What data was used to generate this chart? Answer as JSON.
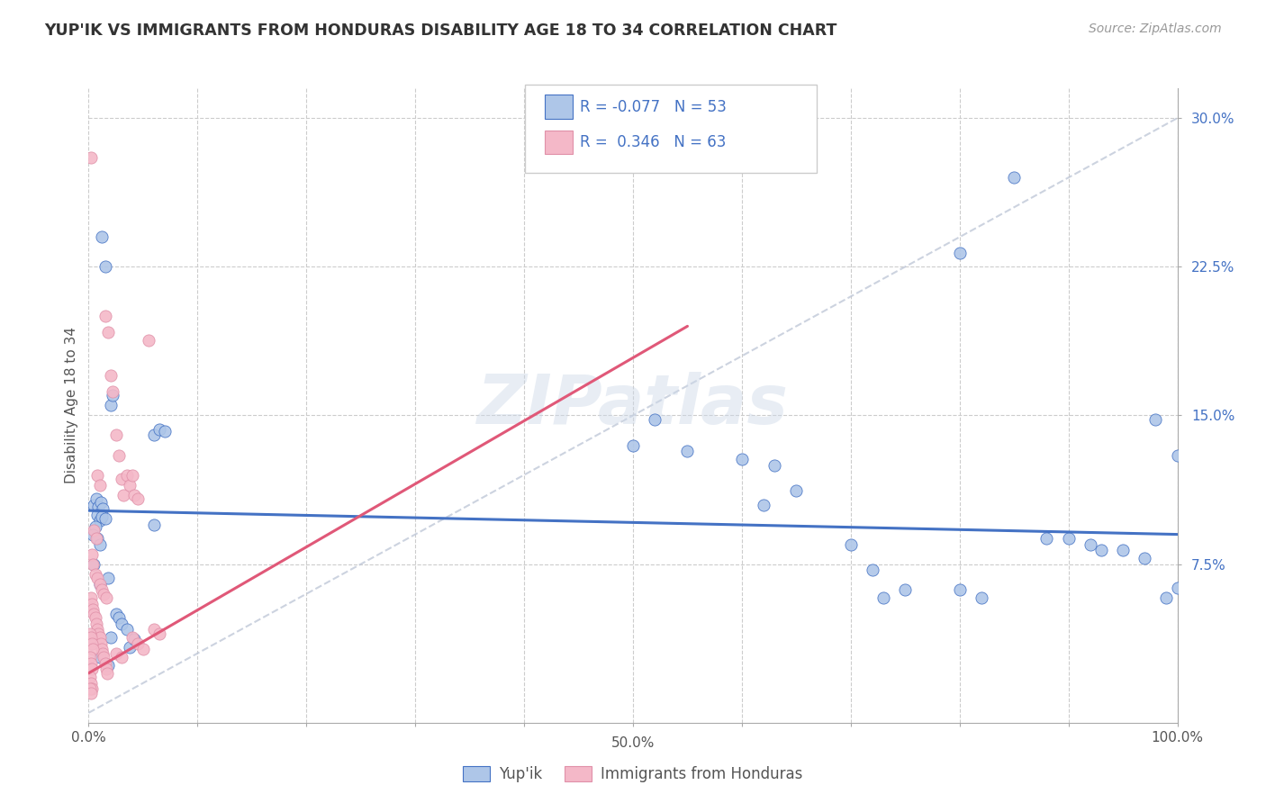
{
  "title": "YUP'IK VS IMMIGRANTS FROM HONDURAS DISABILITY AGE 18 TO 34 CORRELATION CHART",
  "source": "Source: ZipAtlas.com",
  "ylabel": "Disability Age 18 to 34",
  "legend_label1": "Yup'ik",
  "legend_label2": "Immigrants from Honduras",
  "r1": -0.077,
  "n1": 53,
  "r2": 0.346,
  "n2": 63,
  "color1": "#aec6e8",
  "color2": "#f4b8c8",
  "line_color1": "#4472c4",
  "line_color2": "#e05878",
  "xmin": 0.0,
  "xmax": 1.0,
  "ymin": -0.005,
  "ymax": 0.315,
  "blue_line_x": [
    0.0,
    1.0
  ],
  "blue_line_y": [
    0.102,
    0.09
  ],
  "pink_line_x": [
    0.0,
    0.55
  ],
  "pink_line_y": [
    0.02,
    0.195
  ],
  "diag_line_x": [
    0.0,
    1.0
  ],
  "diag_line_y": [
    0.0,
    0.3
  ],
  "blue_points": [
    [
      0.005,
      0.105
    ],
    [
      0.007,
      0.108
    ],
    [
      0.009,
      0.104
    ],
    [
      0.011,
      0.106
    ],
    [
      0.013,
      0.103
    ],
    [
      0.008,
      0.1
    ],
    [
      0.01,
      0.097
    ],
    [
      0.006,
      0.094
    ],
    [
      0.012,
      0.099
    ],
    [
      0.015,
      0.098
    ],
    [
      0.004,
      0.09
    ],
    [
      0.008,
      0.088
    ],
    [
      0.01,
      0.085
    ],
    [
      0.005,
      0.075
    ],
    [
      0.02,
      0.155
    ],
    [
      0.022,
      0.16
    ],
    [
      0.01,
      0.065
    ],
    [
      0.018,
      0.068
    ],
    [
      0.025,
      0.05
    ],
    [
      0.028,
      0.048
    ],
    [
      0.03,
      0.045
    ],
    [
      0.035,
      0.042
    ],
    [
      0.01,
      0.028
    ],
    [
      0.018,
      0.024
    ],
    [
      0.02,
      0.038
    ],
    [
      0.038,
      0.033
    ],
    [
      0.042,
      0.037
    ],
    [
      0.012,
      0.24
    ],
    [
      0.015,
      0.225
    ],
    [
      0.06,
      0.095
    ],
    [
      0.06,
      0.14
    ],
    [
      0.065,
      0.143
    ],
    [
      0.07,
      0.142
    ],
    [
      0.5,
      0.135
    ],
    [
      0.52,
      0.148
    ],
    [
      0.55,
      0.132
    ],
    [
      0.6,
      0.128
    ],
    [
      0.63,
      0.125
    ],
    [
      0.65,
      0.112
    ],
    [
      0.62,
      0.105
    ],
    [
      0.7,
      0.085
    ],
    [
      0.72,
      0.072
    ],
    [
      0.75,
      0.062
    ],
    [
      0.73,
      0.058
    ],
    [
      0.8,
      0.062
    ],
    [
      0.82,
      0.058
    ],
    [
      0.85,
      0.27
    ],
    [
      0.8,
      0.232
    ],
    [
      0.88,
      0.088
    ],
    [
      0.9,
      0.088
    ],
    [
      0.92,
      0.085
    ],
    [
      0.93,
      0.082
    ],
    [
      0.95,
      0.082
    ],
    [
      0.97,
      0.078
    ],
    [
      0.98,
      0.148
    ],
    [
      1.0,
      0.13
    ],
    [
      1.0,
      0.063
    ],
    [
      0.99,
      0.058
    ]
  ],
  "pink_points": [
    [
      0.002,
      0.28
    ],
    [
      0.008,
      0.12
    ],
    [
      0.01,
      0.115
    ],
    [
      0.005,
      0.092
    ],
    [
      0.007,
      0.088
    ],
    [
      0.003,
      0.08
    ],
    [
      0.004,
      0.075
    ],
    [
      0.006,
      0.07
    ],
    [
      0.008,
      0.068
    ],
    [
      0.01,
      0.065
    ],
    [
      0.012,
      0.062
    ],
    [
      0.014,
      0.06
    ],
    [
      0.016,
      0.058
    ],
    [
      0.002,
      0.058
    ],
    [
      0.003,
      0.055
    ],
    [
      0.004,
      0.052
    ],
    [
      0.005,
      0.05
    ],
    [
      0.006,
      0.048
    ],
    [
      0.007,
      0.045
    ],
    [
      0.008,
      0.042
    ],
    [
      0.009,
      0.04
    ],
    [
      0.01,
      0.038
    ],
    [
      0.011,
      0.035
    ],
    [
      0.012,
      0.032
    ],
    [
      0.013,
      0.03
    ],
    [
      0.014,
      0.028
    ],
    [
      0.015,
      0.025
    ],
    [
      0.016,
      0.022
    ],
    [
      0.017,
      0.02
    ],
    [
      0.001,
      0.04
    ],
    [
      0.002,
      0.038
    ],
    [
      0.003,
      0.035
    ],
    [
      0.004,
      0.032
    ],
    [
      0.001,
      0.028
    ],
    [
      0.002,
      0.025
    ],
    [
      0.003,
      0.022
    ],
    [
      0.001,
      0.018
    ],
    [
      0.002,
      0.015
    ],
    [
      0.003,
      0.012
    ],
    [
      0.001,
      0.012
    ],
    [
      0.002,
      0.01
    ],
    [
      0.015,
      0.2
    ],
    [
      0.018,
      0.192
    ],
    [
      0.02,
      0.17
    ],
    [
      0.022,
      0.162
    ],
    [
      0.025,
      0.14
    ],
    [
      0.028,
      0.13
    ],
    [
      0.03,
      0.118
    ],
    [
      0.032,
      0.11
    ],
    [
      0.035,
      0.12
    ],
    [
      0.038,
      0.115
    ],
    [
      0.04,
      0.12
    ],
    [
      0.042,
      0.11
    ],
    [
      0.045,
      0.108
    ],
    [
      0.055,
      0.188
    ],
    [
      0.06,
      0.042
    ],
    [
      0.065,
      0.04
    ],
    [
      0.025,
      0.03
    ],
    [
      0.03,
      0.028
    ],
    [
      0.04,
      0.038
    ],
    [
      0.045,
      0.035
    ],
    [
      0.05,
      0.032
    ]
  ]
}
